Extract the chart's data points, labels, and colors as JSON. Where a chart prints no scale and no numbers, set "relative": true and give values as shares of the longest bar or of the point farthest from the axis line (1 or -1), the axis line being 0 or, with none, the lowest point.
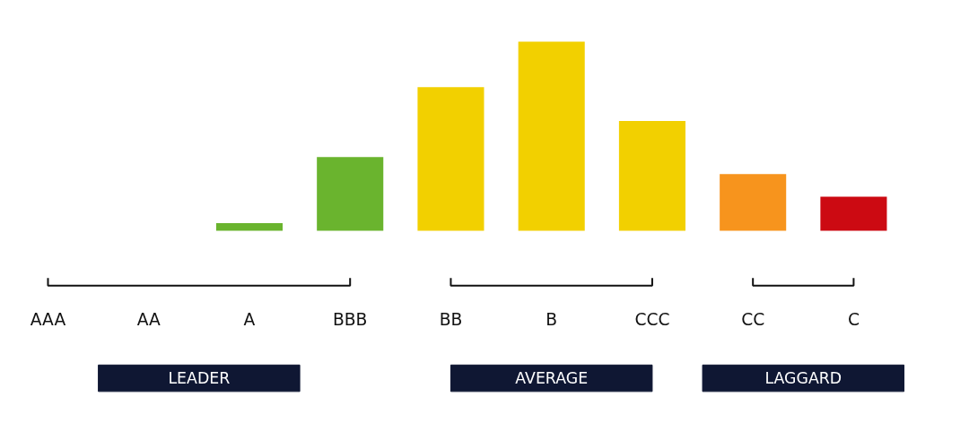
{
  "chart_data": {
    "type": "bar",
    "relative": true,
    "categories": [
      "AAA",
      "AA",
      "A",
      "BBB",
      "BB",
      "B",
      "CCC",
      "CC",
      "C"
    ],
    "values": [
      0,
      0,
      0.04,
      0.39,
      0.76,
      1,
      0.58,
      0.3,
      0.18
    ],
    "colors": [
      "#6ab42e",
      "#6ab42e",
      "#6ab42e",
      "#6ab42e",
      "#f2d000",
      "#f2d000",
      "#f2d000",
      "#f7941d",
      "#cc0a12"
    ],
    "annotations": [
      "LEADER",
      "AVERAGE",
      "LAGGARD"
    ],
    "grid": false
  }
}
